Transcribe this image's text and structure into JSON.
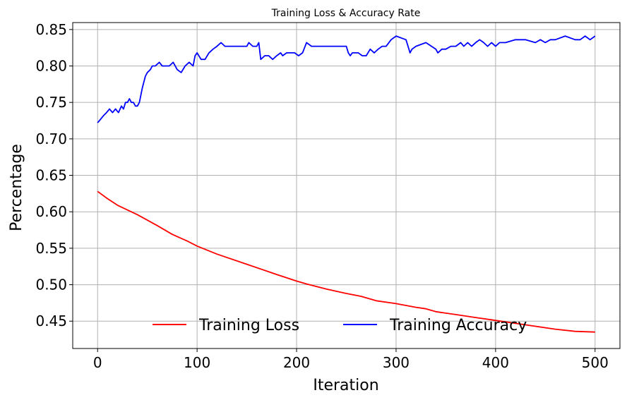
{
  "chart_data": {
    "type": "line",
    "title": "Training Loss & Accuracy Rate",
    "xlabel": "Iteration",
    "ylabel": "Percentage",
    "xlim": [
      -25,
      525
    ],
    "ylim": [
      0.4125,
      0.8595
    ],
    "xticks": [
      0,
      100,
      200,
      300,
      400,
      500
    ],
    "yticks": [
      0.45,
      0.5,
      0.55,
      0.6,
      0.65,
      0.7,
      0.75,
      0.8,
      0.85
    ],
    "grid": true,
    "legend": "lower-center",
    "series": [
      {
        "name": "Training Loss",
        "color": "#ff0000",
        "x": [
          0,
          10,
          20,
          40,
          60,
          75,
          90,
          100,
          120,
          150,
          180,
          200,
          210,
          230,
          250,
          265,
          280,
          300,
          320,
          330,
          340,
          360,
          380,
          400,
          420,
          440,
          460,
          480,
          500
        ],
        "y": [
          0.628,
          0.618,
          0.609,
          0.596,
          0.581,
          0.569,
          0.56,
          0.553,
          0.542,
          0.528,
          0.514,
          0.505,
          0.501,
          0.494,
          0.488,
          0.484,
          0.478,
          0.474,
          0.469,
          0.467,
          0.463,
          0.459,
          0.455,
          0.451,
          0.447,
          0.443,
          0.439,
          0.436,
          0.435
        ]
      },
      {
        "name": "Training Accuracy",
        "color": "#0000ff",
        "x": [
          0,
          3,
          6,
          9,
          12,
          15,
          18,
          21,
          24,
          26,
          28,
          30,
          32,
          34,
          36,
          38,
          40,
          42,
          45,
          48,
          50,
          53,
          55,
          58,
          62,
          65,
          68,
          72,
          76,
          80,
          84,
          88,
          92,
          96,
          98,
          100,
          104,
          108,
          112,
          116,
          120,
          124,
          128,
          140,
          150,
          152,
          156,
          160,
          162,
          164,
          168,
          172,
          176,
          180,
          184,
          186,
          190,
          194,
          198,
          202,
          206,
          210,
          215,
          230,
          240,
          250,
          252,
          254,
          256,
          258,
          262,
          266,
          270,
          274,
          278,
          282,
          286,
          290,
          295,
          300,
          310,
          312,
          314,
          316,
          320,
          330,
          340,
          342,
          346,
          350,
          355,
          360,
          365,
          368,
          372,
          376,
          380,
          384,
          388,
          392,
          396,
          400,
          404,
          410,
          420,
          430,
          440,
          445,
          450,
          455,
          460,
          470,
          480,
          485,
          490,
          495,
          500
        ],
        "y": [
          0.722,
          0.727,
          0.732,
          0.736,
          0.741,
          0.736,
          0.741,
          0.736,
          0.745,
          0.741,
          0.75,
          0.75,
          0.755,
          0.75,
          0.75,
          0.745,
          0.745,
          0.75,
          0.77,
          0.786,
          0.791,
          0.795,
          0.8,
          0.8,
          0.805,
          0.8,
          0.8,
          0.8,
          0.805,
          0.795,
          0.791,
          0.8,
          0.805,
          0.8,
          0.814,
          0.818,
          0.809,
          0.809,
          0.818,
          0.823,
          0.827,
          0.832,
          0.827,
          0.827,
          0.827,
          0.832,
          0.827,
          0.827,
          0.832,
          0.809,
          0.814,
          0.814,
          0.809,
          0.814,
          0.818,
          0.814,
          0.818,
          0.818,
          0.818,
          0.814,
          0.818,
          0.832,
          0.827,
          0.827,
          0.827,
          0.827,
          0.818,
          0.814,
          0.818,
          0.818,
          0.818,
          0.814,
          0.814,
          0.823,
          0.818,
          0.823,
          0.827,
          0.827,
          0.836,
          0.841,
          0.836,
          0.827,
          0.818,
          0.823,
          0.827,
          0.832,
          0.823,
          0.818,
          0.823,
          0.823,
          0.827,
          0.827,
          0.832,
          0.827,
          0.832,
          0.827,
          0.832,
          0.836,
          0.832,
          0.827,
          0.832,
          0.827,
          0.832,
          0.832,
          0.836,
          0.836,
          0.832,
          0.836,
          0.832,
          0.836,
          0.836,
          0.841,
          0.836,
          0.836,
          0.841,
          0.836,
          0.841
        ]
      }
    ]
  }
}
